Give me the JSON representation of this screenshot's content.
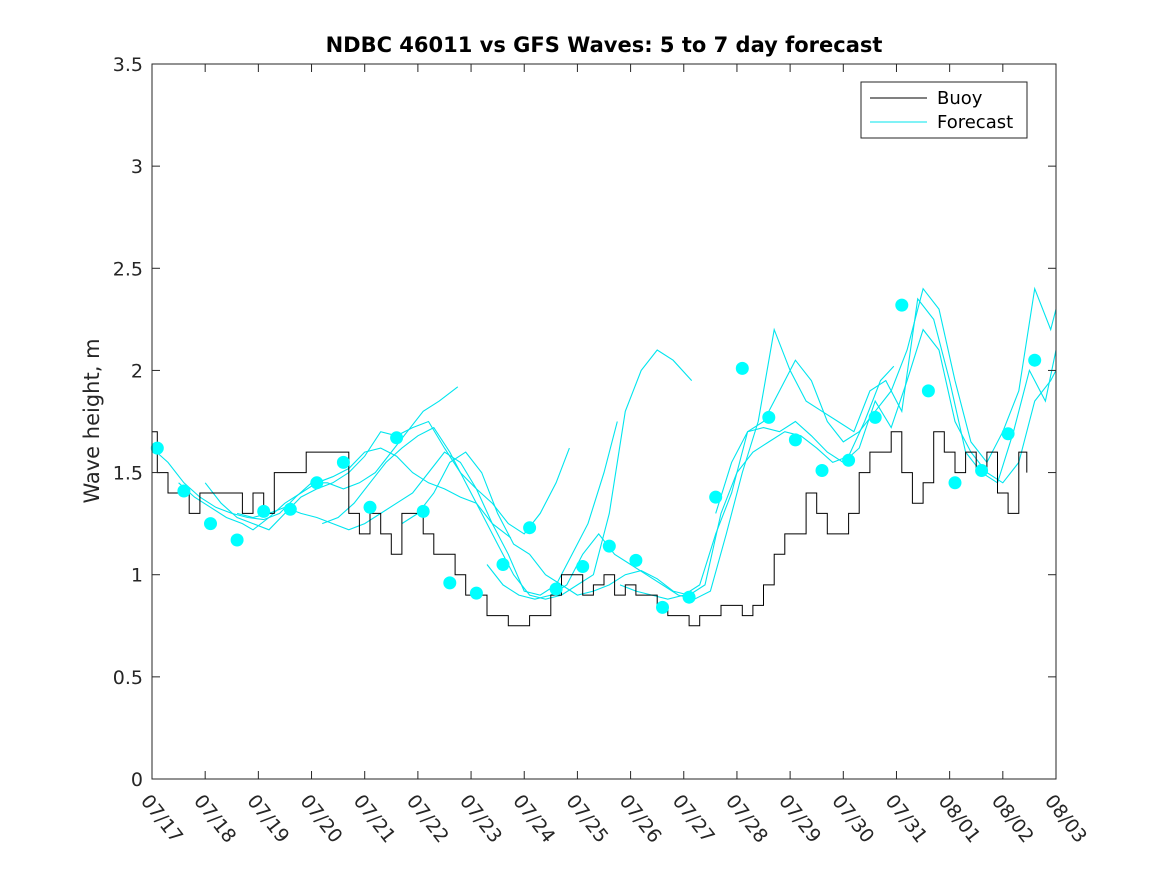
{
  "chart_data": {
    "type": "line",
    "title": "NDBC 46011 vs GFS Waves: 5 to 7 day forecast",
    "ylabel": "Wave height, m",
    "xlabel": "",
    "x_domain_days": [
      0,
      17
    ],
    "ylim": [
      0,
      3.5
    ],
    "yticks": [
      0,
      0.5,
      1,
      1.5,
      2,
      2.5,
      3,
      3.5
    ],
    "ytick_labels": [
      "0",
      "0.5",
      "1",
      "1.5",
      "2",
      "2.5",
      "3",
      "3.5"
    ],
    "xtick_labels": [
      "07/17",
      "07/18",
      "07/19",
      "07/20",
      "07/21",
      "07/22",
      "07/23",
      "07/24",
      "07/25",
      "07/26",
      "07/27",
      "07/28",
      "07/29",
      "07/30",
      "07/31",
      "08/01",
      "08/02",
      "08/03"
    ],
    "legend": {
      "position": "top-right",
      "entries": [
        {
          "name": "Buoy",
          "color": "#000000"
        },
        {
          "name": "Forecast",
          "color": "#00ffff"
        }
      ]
    },
    "colors": {
      "buoy": "#000000",
      "forecast": "#00e5ee",
      "markers": "#00ffff"
    },
    "series": [
      {
        "name": "Buoy",
        "x_days": [
          0,
          0.1,
          0.3,
          0.5,
          0.7,
          0.9,
          1.1,
          1.3,
          1.5,
          1.7,
          1.9,
          2.1,
          2.3,
          2.5,
          2.7,
          2.9,
          3.1,
          3.3,
          3.5,
          3.7,
          3.9,
          4.1,
          4.3,
          4.5,
          4.7,
          4.9,
          5.1,
          5.3,
          5.5,
          5.7,
          5.9,
          6.1,
          6.3,
          6.5,
          6.7,
          6.9,
          7.1,
          7.3,
          7.5,
          7.7,
          7.9,
          8.1,
          8.3,
          8.5,
          8.7,
          8.9,
          9.1,
          9.3,
          9.5,
          9.7,
          9.9,
          10.1,
          10.3,
          10.5,
          10.7,
          10.9,
          11.1,
          11.3,
          11.5,
          11.7,
          11.9,
          12.1,
          12.3,
          12.5,
          12.7,
          12.9,
          13.1,
          13.3,
          13.5,
          13.7,
          13.9,
          14.1,
          14.3,
          14.5,
          14.7,
          14.9,
          15.1,
          15.3,
          15.5,
          15.7,
          15.9,
          16.1,
          16.3,
          16.45
        ],
        "values": [
          1.7,
          1.5,
          1.4,
          1.4,
          1.3,
          1.4,
          1.4,
          1.4,
          1.4,
          1.3,
          1.4,
          1.3,
          1.5,
          1.5,
          1.5,
          1.6,
          1.6,
          1.6,
          1.6,
          1.3,
          1.2,
          1.3,
          1.2,
          1.1,
          1.3,
          1.3,
          1.2,
          1.1,
          1.1,
          1.0,
          0.9,
          0.9,
          0.8,
          0.8,
          0.75,
          0.75,
          0.8,
          0.8,
          0.9,
          1.0,
          1.0,
          0.9,
          0.95,
          1.0,
          0.9,
          0.95,
          0.9,
          0.9,
          0.85,
          0.8,
          0.8,
          0.75,
          0.8,
          0.8,
          0.85,
          0.85,
          0.8,
          0.85,
          0.95,
          1.1,
          1.2,
          1.2,
          1.4,
          1.3,
          1.2,
          1.2,
          1.3,
          1.5,
          1.6,
          1.6,
          1.7,
          1.5,
          1.35,
          1.45,
          1.7,
          1.6,
          1.5,
          1.6,
          1.5,
          1.6,
          1.4,
          1.3,
          1.6,
          1.5
        ]
      },
      {
        "name": "Forecast",
        "runs": [
          {
            "x_days": [
              0,
              0.3,
              0.6,
              0.9,
              1.2,
              1.5,
              1.8,
              2.1,
              2.4,
              2.7,
              3.0,
              3.3,
              3.6,
              3.9,
              4.2,
              4.5,
              4.8,
              5.1,
              5.4,
              5.75
            ],
            "values": [
              1.62,
              1.55,
              1.45,
              1.38,
              1.33,
              1.3,
              1.28,
              1.27,
              1.3,
              1.38,
              1.45,
              1.45,
              1.42,
              1.45,
              1.5,
              1.6,
              1.7,
              1.8,
              1.85,
              1.92
            ]
          },
          {
            "x_days": [
              0.5,
              0.8,
              1.1,
              1.4,
              1.7,
              1.9,
              2.2,
              2.5,
              2.8,
              3.1,
              3.4,
              3.7,
              4.0,
              4.3,
              4.6,
              4.9,
              5.2,
              5.5,
              5.8,
              6.1,
              6.4,
              6.75
            ],
            "values": [
              1.45,
              1.38,
              1.33,
              1.28,
              1.25,
              1.22,
              1.28,
              1.35,
              1.4,
              1.45,
              1.48,
              1.52,
              1.6,
              1.62,
              1.58,
              1.5,
              1.45,
              1.42,
              1.38,
              1.35,
              1.25,
              1.18
            ]
          },
          {
            "x_days": [
              1.0,
              1.3,
              1.6,
              1.9,
              2.2,
              2.5,
              2.8,
              3.1,
              3.4,
              3.7,
              4.0,
              4.3,
              4.6,
              4.9,
              5.2,
              5.5,
              5.8,
              6.1,
              6.4,
              6.7,
              7.0,
              7.3,
              7.6,
              7.85
            ],
            "values": [
              1.45,
              1.35,
              1.28,
              1.25,
              1.22,
              1.3,
              1.38,
              1.42,
              1.45,
              1.5,
              1.58,
              1.7,
              1.68,
              1.72,
              1.75,
              1.62,
              1.5,
              1.42,
              1.35,
              1.25,
              1.2,
              1.3,
              1.45,
              1.62
            ]
          },
          {
            "x_days": [
              1.6,
              1.9,
              2.2,
              2.5,
              2.8,
              3.1,
              3.4,
              3.7,
              4.0,
              4.3,
              4.6,
              4.9,
              5.2,
              5.5,
              5.8,
              6.1,
              6.4,
              6.7,
              7.0,
              7.3,
              7.6,
              7.9,
              8.2,
              8.5,
              8.75
            ],
            "values": [
              1.3,
              1.28,
              1.3,
              1.33,
              1.3,
              1.28,
              1.25,
              1.22,
              1.25,
              1.3,
              1.35,
              1.4,
              1.5,
              1.6,
              1.55,
              1.42,
              1.25,
              1.1,
              0.92,
              0.9,
              0.95,
              1.1,
              1.25,
              1.5,
              1.75
            ]
          },
          {
            "x_days": [
              3.2,
              3.5,
              3.8,
              4.1,
              4.4,
              4.7,
              5.0,
              5.3,
              5.6,
              5.9,
              6.2,
              6.5,
              6.8,
              7.1,
              7.4,
              7.7,
              8.0,
              8.3,
              8.6,
              8.9,
              9.2,
              9.5,
              9.8,
              10.15
            ],
            "values": [
              1.25,
              1.28,
              1.35,
              1.45,
              1.55,
              1.62,
              1.68,
              1.72,
              1.6,
              1.45,
              1.3,
              1.15,
              1.0,
              0.9,
              0.88,
              0.9,
              0.95,
              1.0,
              1.3,
              1.8,
              2.0,
              2.1,
              2.05,
              1.95
            ]
          },
          {
            "x_days": [
              4.7,
              5.0,
              5.3,
              5.6,
              5.9,
              6.2,
              6.5,
              6.8,
              7.1,
              7.4,
              7.7,
              8.0,
              8.3,
              8.6,
              8.9,
              9.2,
              9.5,
              9.8,
              10.1,
              10.4,
              10.7,
              11.0,
              11.3,
              11.6,
              11.9,
              12.2,
              12.5,
              12.8,
              13.1,
              13.4,
              13.7,
              13.95
            ],
            "values": [
              1.25,
              1.3,
              1.4,
              1.55,
              1.6,
              1.5,
              1.3,
              1.15,
              1.1,
              1.0,
              0.95,
              0.9,
              0.92,
              0.95,
              1.0,
              1.02,
              0.98,
              0.92,
              0.9,
              0.95,
              1.3,
              1.5,
              1.6,
              1.65,
              1.7,
              1.68,
              1.62,
              1.55,
              1.58,
              1.75,
              1.95,
              2.02
            ]
          },
          {
            "x_days": [
              6.3,
              6.6,
              6.9,
              7.2,
              7.5,
              7.8,
              8.1,
              8.4,
              8.7,
              9.0,
              9.3,
              9.6,
              9.9,
              10.2,
              10.5,
              10.8,
              11.1,
              11.4,
              11.7,
              12.0,
              12.3,
              12.6,
              12.9,
              13.2,
              13.5,
              13.8,
              14.1,
              14.4,
              14.7,
              15.0,
              15.3,
              15.6,
              15.9,
              16.2,
              16.5,
              16.8,
              17.0
            ],
            "values": [
              1.05,
              0.95,
              0.9,
              0.88,
              0.9,
              0.95,
              1.1,
              1.2,
              1.1,
              1.05,
              1.0,
              0.95,
              0.9,
              0.88,
              0.92,
              1.2,
              1.5,
              1.75,
              2.2,
              2.0,
              1.85,
              1.8,
              1.75,
              1.7,
              1.9,
              1.95,
              1.8,
              2.35,
              2.25,
              1.95,
              1.6,
              1.5,
              1.45,
              1.7,
              2.0,
              1.85,
              2.1
            ]
          },
          {
            "x_days": [
              8.8,
              9.1,
              9.4,
              9.7,
              10.0,
              10.3,
              10.6,
              10.9,
              11.2,
              11.5,
              11.8,
              12.1,
              12.4,
              12.7,
              13.0,
              13.3,
              13.6,
              13.9,
              14.2,
              14.5,
              14.8,
              15.1,
              15.4,
              15.7,
              16.0,
              16.3,
              16.6,
              16.9,
              17.0
            ],
            "values": [
              0.95,
              0.92,
              0.9,
              0.88,
              0.9,
              0.95,
              1.2,
              1.4,
              1.7,
              1.75,
              1.9,
              2.05,
              1.95,
              1.75,
              1.65,
              1.7,
              1.8,
              1.9,
              2.1,
              2.4,
              2.3,
              1.95,
              1.65,
              1.55,
              1.7,
              1.9,
              2.4,
              2.2,
              2.3
            ]
          },
          {
            "x_days": [
              10.6,
              10.9,
              11.2,
              11.5,
              11.8,
              12.1,
              12.4,
              12.7,
              13.0,
              13.3,
              13.6,
              13.9,
              14.2,
              14.5,
              14.8,
              15.1,
              15.4,
              15.7,
              16.0,
              16.3,
              16.6,
              16.9,
              17.0
            ],
            "values": [
              1.3,
              1.55,
              1.7,
              1.72,
              1.7,
              1.75,
              1.68,
              1.6,
              1.55,
              1.62,
              1.85,
              1.72,
              1.95,
              2.2,
              2.1,
              1.75,
              1.6,
              1.5,
              1.45,
              1.55,
              1.85,
              1.95,
              2.0
            ]
          }
        ]
      }
    ],
    "forecast_markers": {
      "x_days": [
        0.1,
        0.6,
        1.1,
        1.6,
        2.1,
        2.6,
        3.1,
        3.6,
        4.1,
        4.6,
        5.1,
        5.6,
        6.1,
        6.6,
        7.1,
        7.6,
        8.1,
        8.6,
        9.1,
        9.6,
        10.1,
        10.6,
        11.1,
        11.6,
        12.1,
        12.6,
        13.1,
        13.6,
        14.1,
        14.6,
        15.1,
        15.6,
        16.1,
        16.6
      ],
      "values": [
        1.62,
        1.41,
        1.25,
        1.17,
        1.31,
        1.32,
        1.45,
        1.55,
        1.33,
        1.67,
        1.31,
        0.96,
        0.91,
        1.05,
        1.23,
        0.93,
        1.04,
        1.14,
        1.07,
        0.84,
        0.89,
        1.38,
        2.01,
        1.77,
        1.66,
        1.51,
        1.56,
        1.77,
        2.32,
        1.9,
        1.45,
        1.51,
        1.69,
        2.05
      ]
    }
  }
}
